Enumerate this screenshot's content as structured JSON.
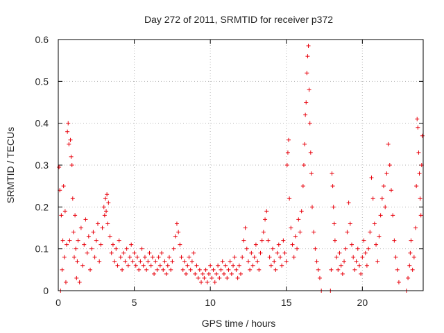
{
  "chart_data": {
    "type": "scatter",
    "title": "Day 272 of 2011, SRMTID for receiver p372",
    "xlabel": "GPS time / hours",
    "ylabel": "SRMTID / TECUs",
    "xlim": [
      0,
      24
    ],
    "ylim": [
      0,
      0.6
    ],
    "x_ticks": [
      0,
      5,
      10,
      15,
      20
    ],
    "y_ticks": [
      0,
      0.1,
      0.2,
      0.3,
      0.4,
      0.5,
      0.6
    ],
    "x_tick_labels": [
      "0",
      "5",
      "10",
      "15",
      "20"
    ],
    "y_tick_labels": [
      "0",
      "0.1",
      "0.2",
      "0.3",
      "0.4",
      "0.5",
      "0.6"
    ],
    "grid": true,
    "marker": "+",
    "color": "#e8000b",
    "series": [
      {
        "name": "SRMTID",
        "points": [
          [
            0.05,
            0.295
          ],
          [
            0.1,
            0.24
          ],
          [
            0.15,
            0.0
          ],
          [
            0.2,
            0.18
          ],
          [
            0.25,
            0.05
          ],
          [
            0.3,
            0.12
          ],
          [
            0.35,
            0.25
          ],
          [
            0.4,
            0.08
          ],
          [
            0.45,
            0.19
          ],
          [
            0.5,
            0.02
          ],
          [
            0.55,
            0.11
          ],
          [
            0.6,
            0.38
          ],
          [
            0.65,
            0.4
          ],
          [
            0.7,
            0.35
          ],
          [
            0.75,
            0.12
          ],
          [
            0.8,
            0.36
          ],
          [
            0.85,
            0.32
          ],
          [
            0.9,
            0.3
          ],
          [
            0.95,
            0.22
          ],
          [
            1.0,
            0.14
          ],
          [
            1.05,
            0.08
          ],
          [
            1.1,
            0.18
          ],
          [
            1.15,
            0.1
          ],
          [
            1.2,
            0.03
          ],
          [
            1.25,
            0.07
          ],
          [
            1.3,
            0.12
          ],
          [
            1.4,
            0.02
          ],
          [
            1.5,
            0.15
          ],
          [
            1.6,
            0.06
          ],
          [
            1.7,
            0.11
          ],
          [
            1.8,
            0.17
          ],
          [
            1.9,
            0.09
          ],
          [
            2.0,
            0.13
          ],
          [
            2.1,
            0.05
          ],
          [
            2.2,
            0.1
          ],
          [
            2.3,
            0.14
          ],
          [
            2.4,
            0.08
          ],
          [
            2.5,
            0.12
          ],
          [
            2.6,
            0.16
          ],
          [
            2.7,
            0.07
          ],
          [
            2.8,
            0.11
          ],
          [
            2.9,
            0.15
          ],
          [
            3.0,
            0.2
          ],
          [
            3.05,
            0.18
          ],
          [
            3.1,
            0.22
          ],
          [
            3.15,
            0.19
          ],
          [
            3.2,
            0.23
          ],
          [
            3.25,
            0.16
          ],
          [
            3.3,
            0.21
          ],
          [
            3.4,
            0.13
          ],
          [
            3.5,
            0.09
          ],
          [
            3.6,
            0.11
          ],
          [
            3.7,
            0.07
          ],
          [
            3.8,
            0.1
          ],
          [
            3.9,
            0.06
          ],
          [
            4.0,
            0.12
          ],
          [
            4.1,
            0.08
          ],
          [
            4.2,
            0.05
          ],
          [
            4.3,
            0.09
          ],
          [
            4.4,
            0.07
          ],
          [
            4.5,
            0.1
          ],
          [
            4.6,
            0.06
          ],
          [
            4.7,
            0.08
          ],
          [
            4.8,
            0.11
          ],
          [
            4.9,
            0.07
          ],
          [
            5.0,
            0.09
          ],
          [
            5.1,
            0.06
          ],
          [
            5.2,
            0.08
          ],
          [
            5.3,
            0.05
          ],
          [
            5.4,
            0.07
          ],
          [
            5.5,
            0.1
          ],
          [
            5.6,
            0.06
          ],
          [
            5.7,
            0.08
          ],
          [
            5.8,
            0.05
          ],
          [
            5.9,
            0.07
          ],
          [
            6.0,
            0.09
          ],
          [
            6.1,
            0.06
          ],
          [
            6.2,
            0.08
          ],
          [
            6.3,
            0.04
          ],
          [
            6.4,
            0.07
          ],
          [
            6.5,
            0.05
          ],
          [
            6.6,
            0.08
          ],
          [
            6.7,
            0.06
          ],
          [
            6.8,
            0.09
          ],
          [
            6.9,
            0.05
          ],
          [
            7.0,
            0.07
          ],
          [
            7.1,
            0.04
          ],
          [
            7.2,
            0.06
          ],
          [
            7.3,
            0.08
          ],
          [
            7.4,
            0.05
          ],
          [
            7.5,
            0.07
          ],
          [
            7.6,
            0.1
          ],
          [
            7.7,
            0.13
          ],
          [
            7.8,
            0.16
          ],
          [
            7.9,
            0.14
          ],
          [
            8.0,
            0.11
          ],
          [
            8.1,
            0.08
          ],
          [
            8.2,
            0.05
          ],
          [
            8.3,
            0.07
          ],
          [
            8.4,
            0.04
          ],
          [
            8.5,
            0.06
          ],
          [
            8.6,
            0.08
          ],
          [
            8.7,
            0.05
          ],
          [
            8.8,
            0.07
          ],
          [
            8.9,
            0.09
          ],
          [
            9.0,
            0.04
          ],
          [
            9.1,
            0.06
          ],
          [
            9.2,
            0.03
          ],
          [
            9.3,
            0.05
          ],
          [
            9.4,
            0.02
          ],
          [
            9.5,
            0.04
          ],
          [
            9.6,
            0.03
          ],
          [
            9.7,
            0.05
          ],
          [
            9.8,
            0.02
          ],
          [
            9.9,
            0.04
          ],
          [
            10.0,
            0.06
          ],
          [
            10.1,
            0.03
          ],
          [
            10.2,
            0.05
          ],
          [
            10.3,
            0.02
          ],
          [
            10.4,
            0.04
          ],
          [
            10.5,
            0.06
          ],
          [
            10.6,
            0.03
          ],
          [
            10.7,
            0.05
          ],
          [
            10.8,
            0.07
          ],
          [
            10.9,
            0.04
          ],
          [
            11.0,
            0.06
          ],
          [
            11.1,
            0.03
          ],
          [
            11.2,
            0.05
          ],
          [
            11.3,
            0.07
          ],
          [
            11.4,
            0.04
          ],
          [
            11.5,
            0.06
          ],
          [
            11.6,
            0.08
          ],
          [
            11.7,
            0.05
          ],
          [
            11.8,
            0.03
          ],
          [
            11.9,
            0.06
          ],
          [
            12.0,
            0.04
          ],
          [
            12.1,
            0.08
          ],
          [
            12.2,
            0.12
          ],
          [
            12.3,
            0.15
          ],
          [
            12.4,
            0.1
          ],
          [
            12.5,
            0.07
          ],
          [
            12.6,
            0.05
          ],
          [
            12.7,
            0.09
          ],
          [
            12.8,
            0.06
          ],
          [
            12.9,
            0.08
          ],
          [
            13.0,
            0.11
          ],
          [
            13.1,
            0.07
          ],
          [
            13.2,
            0.05
          ],
          [
            13.3,
            0.09
          ],
          [
            13.4,
            0.12
          ],
          [
            13.5,
            0.14
          ],
          [
            13.6,
            0.17
          ],
          [
            13.7,
            0.19
          ],
          [
            13.8,
            0.12
          ],
          [
            13.9,
            0.08
          ],
          [
            14.0,
            0.06
          ],
          [
            14.1,
            0.1
          ],
          [
            14.2,
            0.07
          ],
          [
            14.3,
            0.05
          ],
          [
            14.4,
            0.09
          ],
          [
            14.5,
            0.11
          ],
          [
            14.6,
            0.08
          ],
          [
            14.7,
            0.06
          ],
          [
            14.8,
            0.12
          ],
          [
            14.9,
            0.09
          ],
          [
            15.0,
            0.07
          ],
          [
            15.05,
            0.3
          ],
          [
            15.1,
            0.33
          ],
          [
            15.15,
            0.36
          ],
          [
            15.2,
            0.22
          ],
          [
            15.3,
            0.15
          ],
          [
            15.4,
            0.11
          ],
          [
            15.5,
            0.08
          ],
          [
            15.6,
            0.13
          ],
          [
            15.7,
            0.1
          ],
          [
            15.8,
            0.17
          ],
          [
            15.9,
            0.14
          ],
          [
            16.0,
            0.19
          ],
          [
            16.1,
            0.25
          ],
          [
            16.15,
            0.3
          ],
          [
            16.2,
            0.35
          ],
          [
            16.25,
            0.42
          ],
          [
            16.3,
            0.45
          ],
          [
            16.35,
            0.52
          ],
          [
            16.4,
            0.56
          ],
          [
            16.45,
            0.585
          ],
          [
            16.5,
            0.48
          ],
          [
            16.55,
            0.4
          ],
          [
            16.6,
            0.33
          ],
          [
            16.65,
            0.28
          ],
          [
            16.7,
            0.2
          ],
          [
            16.8,
            0.14
          ],
          [
            16.9,
            0.1
          ],
          [
            17.0,
            0.07
          ],
          [
            17.1,
            0.05
          ],
          [
            17.2,
            0.03
          ],
          [
            17.3,
            0.0
          ],
          [
            17.9,
            0.0
          ],
          [
            17.95,
            0.05
          ],
          [
            18.0,
            0.28
          ],
          [
            18.05,
            0.25
          ],
          [
            18.1,
            0.2
          ],
          [
            18.15,
            0.16
          ],
          [
            18.2,
            0.12
          ],
          [
            18.3,
            0.08
          ],
          [
            18.4,
            0.05
          ],
          [
            18.5,
            0.09
          ],
          [
            18.6,
            0.06
          ],
          [
            18.7,
            0.04
          ],
          [
            18.8,
            0.07
          ],
          [
            18.9,
            0.1
          ],
          [
            19.0,
            0.14
          ],
          [
            19.1,
            0.21
          ],
          [
            19.2,
            0.16
          ],
          [
            19.3,
            0.11
          ],
          [
            19.4,
            0.08
          ],
          [
            19.5,
            0.05
          ],
          [
            19.6,
            0.07
          ],
          [
            19.7,
            0.1
          ],
          [
            19.8,
            0.06
          ],
          [
            19.9,
            0.04
          ],
          [
            20.0,
            0.08
          ],
          [
            20.1,
            0.12
          ],
          [
            20.2,
            0.09
          ],
          [
            20.3,
            0.06
          ],
          [
            20.4,
            0.1
          ],
          [
            20.5,
            0.14
          ],
          [
            20.6,
            0.27
          ],
          [
            20.7,
            0.22
          ],
          [
            20.8,
            0.16
          ],
          [
            20.9,
            0.11
          ],
          [
            21.0,
            0.07
          ],
          [
            21.1,
            0.13
          ],
          [
            21.2,
            0.18
          ],
          [
            21.3,
            0.22
          ],
          [
            21.4,
            0.25
          ],
          [
            21.5,
            0.2
          ],
          [
            21.6,
            0.28
          ],
          [
            21.7,
            0.35
          ],
          [
            21.8,
            0.3
          ],
          [
            21.9,
            0.24
          ],
          [
            22.0,
            0.18
          ],
          [
            22.1,
            0.12
          ],
          [
            22.2,
            0.08
          ],
          [
            22.3,
            0.05
          ],
          [
            22.4,
            0.02
          ],
          [
            22.9,
            0.0
          ],
          [
            23.0,
            0.03
          ],
          [
            23.1,
            0.06
          ],
          [
            23.15,
            0.09
          ],
          [
            23.2,
            0.12
          ],
          [
            23.3,
            0.05
          ],
          [
            23.4,
            0.08
          ],
          [
            23.5,
            0.15
          ],
          [
            23.55,
            0.25
          ],
          [
            23.6,
            0.41
          ],
          [
            23.65,
            0.39
          ],
          [
            23.7,
            0.33
          ],
          [
            23.75,
            0.28
          ],
          [
            23.8,
            0.22
          ],
          [
            23.85,
            0.18
          ],
          [
            23.9,
            0.3
          ],
          [
            23.95,
            0.37
          ]
        ]
      }
    ]
  }
}
